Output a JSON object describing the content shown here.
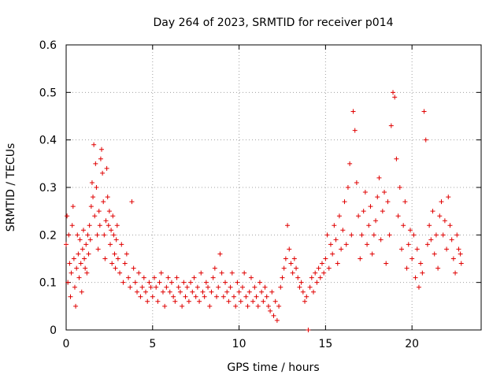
{
  "chart_data": {
    "type": "scatter",
    "title": "Day 264 of 2023, SRMTID for receiver p014",
    "xlabel": "GPS time / hours",
    "ylabel": "SRMTID / TECUs",
    "xlim": [
      0,
      24
    ],
    "ylim": [
      0,
      0.6
    ],
    "xticks": [
      0,
      5,
      10,
      15,
      20
    ],
    "xtick_labels": [
      "0",
      "5",
      "10",
      "15",
      "20"
    ],
    "yticks": [
      0,
      0.1,
      0.2,
      0.3,
      0.4,
      0.5,
      0.6
    ],
    "ytick_labels": [
      "0",
      "0.1",
      "0.2",
      "0.3",
      "0.4",
      "0.5",
      "0.6"
    ],
    "grid": true,
    "marker": "+",
    "color": "#e00000",
    "series": [
      {
        "name": "SRMTID",
        "points": [
          [
            0.0,
            0.18
          ],
          [
            0.05,
            0.24
          ],
          [
            0.1,
            0.1
          ],
          [
            0.15,
            0.2
          ],
          [
            0.2,
            0.14
          ],
          [
            0.25,
            0.07
          ],
          [
            0.3,
            0.12
          ],
          [
            0.35,
            0.22
          ],
          [
            0.4,
            0.26
          ],
          [
            0.45,
            0.15
          ],
          [
            0.5,
            0.09
          ],
          [
            0.55,
            0.05
          ],
          [
            0.6,
            0.13
          ],
          [
            0.65,
            0.2
          ],
          [
            0.7,
            0.16
          ],
          [
            0.75,
            0.11
          ],
          [
            0.8,
            0.19
          ],
          [
            0.85,
            0.14
          ],
          [
            0.9,
            0.08
          ],
          [
            0.95,
            0.17
          ],
          [
            1.0,
            0.21
          ],
          [
            1.05,
            0.15
          ],
          [
            1.1,
            0.13
          ],
          [
            1.15,
            0.18
          ],
          [
            1.2,
            0.12
          ],
          [
            1.25,
            0.2
          ],
          [
            1.3,
            0.16
          ],
          [
            1.35,
            0.22
          ],
          [
            1.4,
            0.19
          ],
          [
            1.45,
            0.26
          ],
          [
            1.5,
            0.31
          ],
          [
            1.55,
            0.28
          ],
          [
            1.6,
            0.39
          ],
          [
            1.65,
            0.24
          ],
          [
            1.7,
            0.35
          ],
          [
            1.75,
            0.3
          ],
          [
            1.8,
            0.2
          ],
          [
            1.85,
            0.17
          ],
          [
            1.9,
            0.25
          ],
          [
            1.95,
            0.22
          ],
          [
            2.0,
            0.36
          ],
          [
            2.05,
            0.38
          ],
          [
            2.1,
            0.33
          ],
          [
            2.15,
            0.27
          ],
          [
            2.2,
            0.2
          ],
          [
            2.25,
            0.15
          ],
          [
            2.3,
            0.23
          ],
          [
            2.35,
            0.34
          ],
          [
            2.4,
            0.28
          ],
          [
            2.45,
            0.22
          ],
          [
            2.5,
            0.25
          ],
          [
            2.55,
            0.18
          ],
          [
            2.6,
            0.21
          ],
          [
            2.65,
            0.14
          ],
          [
            2.7,
            0.24
          ],
          [
            2.75,
            0.2
          ],
          [
            2.8,
            0.16
          ],
          [
            2.85,
            0.13
          ],
          [
            2.9,
            0.19
          ],
          [
            2.95,
            0.22
          ],
          [
            3.0,
            0.15
          ],
          [
            3.1,
            0.12
          ],
          [
            3.2,
            0.18
          ],
          [
            3.3,
            0.1
          ],
          [
            3.4,
            0.14
          ],
          [
            3.5,
            0.16
          ],
          [
            3.6,
            0.11
          ],
          [
            3.7,
            0.09
          ],
          [
            3.8,
            0.27
          ],
          [
            3.9,
            0.13
          ],
          [
            4.0,
            0.1
          ],
          [
            4.1,
            0.08
          ],
          [
            4.2,
            0.12
          ],
          [
            4.3,
            0.07
          ],
          [
            4.4,
            0.09
          ],
          [
            4.5,
            0.11
          ],
          [
            4.6,
            0.08
          ],
          [
            4.7,
            0.06
          ],
          [
            4.8,
            0.1
          ],
          [
            4.9,
            0.09
          ],
          [
            5.0,
            0.07
          ],
          [
            5.1,
            0.11
          ],
          [
            5.2,
            0.09
          ],
          [
            5.3,
            0.06
          ],
          [
            5.4,
            0.1
          ],
          [
            5.5,
            0.12
          ],
          [
            5.6,
            0.08
          ],
          [
            5.7,
            0.05
          ],
          [
            5.8,
            0.09
          ],
          [
            5.9,
            0.11
          ],
          [
            6.0,
            0.08
          ],
          [
            6.1,
            0.1
          ],
          [
            6.2,
            0.07
          ],
          [
            6.3,
            0.06
          ],
          [
            6.4,
            0.11
          ],
          [
            6.5,
            0.09
          ],
          [
            6.6,
            0.08
          ],
          [
            6.7,
            0.05
          ],
          [
            6.8,
            0.1
          ],
          [
            6.9,
            0.07
          ],
          [
            7.0,
            0.09
          ],
          [
            7.1,
            0.06
          ],
          [
            7.2,
            0.1
          ],
          [
            7.3,
            0.08
          ],
          [
            7.4,
            0.11
          ],
          [
            7.5,
            0.07
          ],
          [
            7.6,
            0.09
          ],
          [
            7.7,
            0.06
          ],
          [
            7.8,
            0.12
          ],
          [
            7.9,
            0.08
          ],
          [
            8.0,
            0.07
          ],
          [
            8.1,
            0.1
          ],
          [
            8.2,
            0.09
          ],
          [
            8.3,
            0.05
          ],
          [
            8.4,
            0.08
          ],
          [
            8.5,
            0.11
          ],
          [
            8.6,
            0.13
          ],
          [
            8.7,
            0.07
          ],
          [
            8.8,
            0.09
          ],
          [
            8.9,
            0.16
          ],
          [
            9.0,
            0.12
          ],
          [
            9.1,
            0.07
          ],
          [
            9.2,
            0.1
          ],
          [
            9.3,
            0.08
          ],
          [
            9.4,
            0.06
          ],
          [
            9.5,
            0.09
          ],
          [
            9.6,
            0.12
          ],
          [
            9.7,
            0.07
          ],
          [
            9.8,
            0.05
          ],
          [
            9.9,
            0.1
          ],
          [
            10.0,
            0.08
          ],
          [
            10.1,
            0.06
          ],
          [
            10.2,
            0.09
          ],
          [
            10.3,
            0.12
          ],
          [
            10.4,
            0.07
          ],
          [
            10.5,
            0.05
          ],
          [
            10.6,
            0.08
          ],
          [
            10.7,
            0.11
          ],
          [
            10.8,
            0.06
          ],
          [
            10.9,
            0.09
          ],
          [
            11.0,
            0.07
          ],
          [
            11.1,
            0.05
          ],
          [
            11.2,
            0.1
          ],
          [
            11.3,
            0.08
          ],
          [
            11.4,
            0.06
          ],
          [
            11.5,
            0.09
          ],
          [
            11.6,
            0.07
          ],
          [
            11.7,
            0.05
          ],
          [
            11.8,
            0.04
          ],
          [
            11.9,
            0.08
          ],
          [
            12.0,
            0.03
          ],
          [
            12.1,
            0.06
          ],
          [
            12.2,
            0.02
          ],
          [
            12.3,
            0.05
          ],
          [
            12.4,
            0.09
          ],
          [
            12.5,
            0.11
          ],
          [
            12.6,
            0.13
          ],
          [
            12.7,
            0.15
          ],
          [
            12.8,
            0.22
          ],
          [
            12.9,
            0.17
          ],
          [
            13.0,
            0.14
          ],
          [
            13.1,
            0.12
          ],
          [
            13.2,
            0.15
          ],
          [
            13.3,
            0.13
          ],
          [
            13.4,
            0.11
          ],
          [
            13.5,
            0.09
          ],
          [
            13.6,
            0.1
          ],
          [
            13.7,
            0.08
          ],
          [
            13.8,
            0.06
          ],
          [
            13.9,
            0.07
          ],
          [
            14.0,
            0.0
          ],
          [
            14.1,
            0.09
          ],
          [
            14.2,
            0.11
          ],
          [
            14.3,
            0.08
          ],
          [
            14.4,
            0.12
          ],
          [
            14.5,
            0.1
          ],
          [
            14.6,
            0.13
          ],
          [
            14.7,
            0.11
          ],
          [
            14.8,
            0.14
          ],
          [
            14.9,
            0.12
          ],
          [
            15.0,
            0.15
          ],
          [
            15.1,
            0.2
          ],
          [
            15.2,
            0.13
          ],
          [
            15.3,
            0.18
          ],
          [
            15.4,
            0.16
          ],
          [
            15.5,
            0.22
          ],
          [
            15.6,
            0.19
          ],
          [
            15.7,
            0.14
          ],
          [
            15.8,
            0.24
          ],
          [
            15.9,
            0.17
          ],
          [
            16.0,
            0.21
          ],
          [
            16.1,
            0.27
          ],
          [
            16.2,
            0.18
          ],
          [
            16.3,
            0.3
          ],
          [
            16.4,
            0.35
          ],
          [
            16.5,
            0.2
          ],
          [
            16.6,
            0.46
          ],
          [
            16.7,
            0.42
          ],
          [
            16.8,
            0.31
          ],
          [
            16.9,
            0.24
          ],
          [
            17.0,
            0.15
          ],
          [
            17.1,
            0.2
          ],
          [
            17.2,
            0.25
          ],
          [
            17.3,
            0.29
          ],
          [
            17.4,
            0.18
          ],
          [
            17.5,
            0.22
          ],
          [
            17.6,
            0.26
          ],
          [
            17.7,
            0.16
          ],
          [
            17.8,
            0.2
          ],
          [
            17.9,
            0.23
          ],
          [
            18.0,
            0.28
          ],
          [
            18.1,
            0.32
          ],
          [
            18.2,
            0.19
          ],
          [
            18.3,
            0.25
          ],
          [
            18.4,
            0.29
          ],
          [
            18.5,
            0.14
          ],
          [
            18.6,
            0.27
          ],
          [
            18.7,
            0.2
          ],
          [
            18.8,
            0.43
          ],
          [
            18.9,
            0.5
          ],
          [
            19.0,
            0.49
          ],
          [
            19.1,
            0.36
          ],
          [
            19.2,
            0.24
          ],
          [
            19.3,
            0.3
          ],
          [
            19.4,
            0.17
          ],
          [
            19.5,
            0.22
          ],
          [
            19.6,
            0.27
          ],
          [
            19.7,
            0.13
          ],
          [
            19.8,
            0.18
          ],
          [
            19.9,
            0.21
          ],
          [
            20.0,
            0.15
          ],
          [
            20.1,
            0.2
          ],
          [
            20.2,
            0.11
          ],
          [
            20.3,
            0.17
          ],
          [
            20.4,
            0.09
          ],
          [
            20.5,
            0.14
          ],
          [
            20.6,
            0.12
          ],
          [
            20.7,
            0.46
          ],
          [
            20.8,
            0.4
          ],
          [
            20.9,
            0.18
          ],
          [
            21.0,
            0.22
          ],
          [
            21.1,
            0.19
          ],
          [
            21.2,
            0.25
          ],
          [
            21.3,
            0.16
          ],
          [
            21.4,
            0.2
          ],
          [
            21.5,
            0.13
          ],
          [
            21.6,
            0.24
          ],
          [
            21.7,
            0.27
          ],
          [
            21.8,
            0.2
          ],
          [
            21.9,
            0.23
          ],
          [
            22.0,
            0.17
          ],
          [
            22.1,
            0.28
          ],
          [
            22.2,
            0.22
          ],
          [
            22.3,
            0.19
          ],
          [
            22.4,
            0.15
          ],
          [
            22.5,
            0.12
          ],
          [
            22.6,
            0.2
          ],
          [
            22.7,
            0.17
          ],
          [
            22.8,
            0.16
          ],
          [
            22.85,
            0.14
          ]
        ]
      }
    ]
  }
}
